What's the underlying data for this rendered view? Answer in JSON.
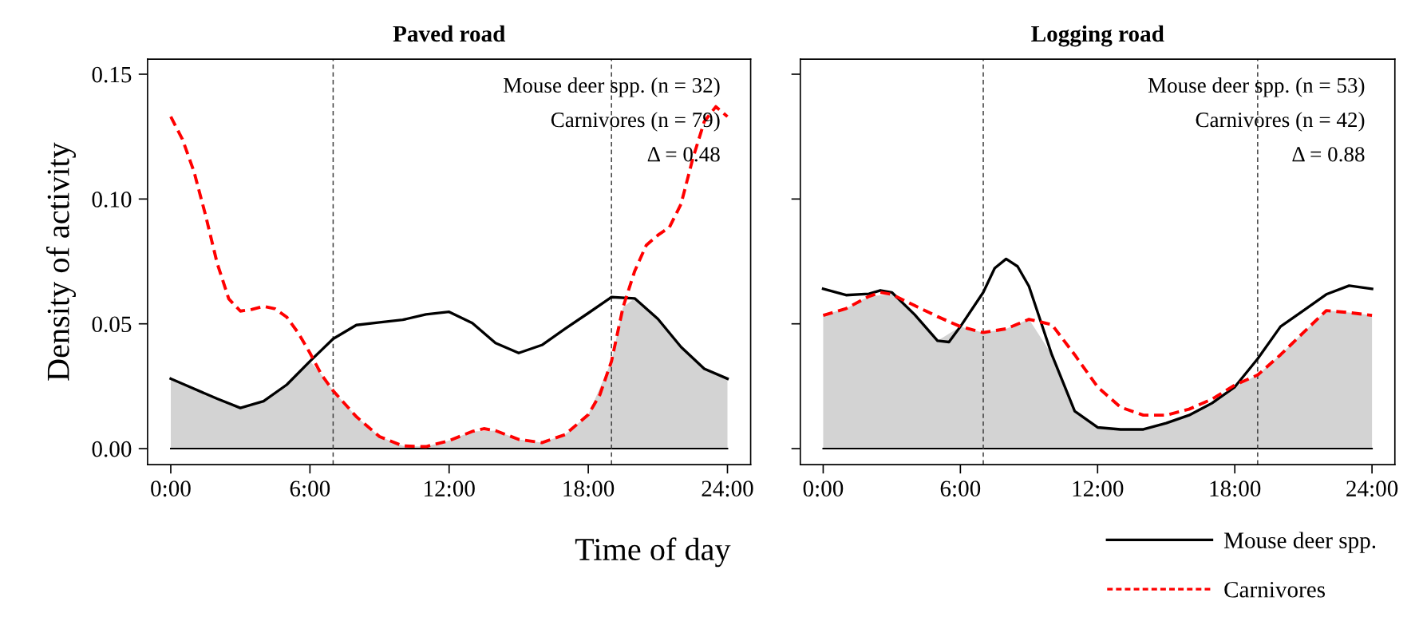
{
  "chart_data": [
    {
      "type": "line",
      "title": "Paved road",
      "ylabel": "Density of activity",
      "xlabel": "Time of day",
      "xlim": [
        -1,
        25
      ],
      "ylim": [
        -0.0064,
        0.156
      ],
      "xticks": [
        {
          "value": 0,
          "label": "0:00"
        },
        {
          "value": 6,
          "label": "6:00"
        },
        {
          "value": 12,
          "label": "12:00"
        },
        {
          "value": 18,
          "label": "18:00"
        },
        {
          "value": 24,
          "label": "24:00"
        }
      ],
      "yticks": [
        {
          "value": 0,
          "label": "0.00"
        },
        {
          "value": 0.05,
          "label": "0.05"
        },
        {
          "value": 0.1,
          "label": "0.10"
        },
        {
          "value": 0.15,
          "label": "0.15"
        }
      ],
      "annotations": [
        "Mouse deer spp. (n = 32)",
        "Carnivores (n = 79)",
        "Δ = 0.48"
      ],
      "legend": "bottom right",
      "grid": false,
      "ref_lines": [
        {
          "axis": "y",
          "value": 0,
          "label": null,
          "color": "#000000",
          "line_style": "solid"
        },
        {
          "axis": "x",
          "value": 7,
          "label": null,
          "color": "#404040",
          "line_style": "dashed"
        },
        {
          "axis": "x",
          "value": 19,
          "label": null,
          "color": "#404040",
          "line_style": "dashed"
        }
      ],
      "series": [
        {
          "type": "area",
          "color": "#d3d3d3",
          "x": [
            0,
            1,
            2,
            3,
            4,
            5,
            6,
            6.5,
            7,
            8,
            9,
            10,
            11,
            12,
            13,
            14,
            15,
            16,
            17,
            18,
            19,
            19.5,
            20,
            21,
            22,
            23,
            24
          ],
          "values": [
            0.028,
            0.024,
            0.02,
            0.0163,
            0.019,
            0.0256,
            0.035,
            0.0296,
            0.0232,
            0.0128,
            0.0048,
            0.0011,
            0.0008,
            0.0032,
            0.0069,
            0.0072,
            0.0037,
            0.0024,
            0.0056,
            0.0136,
            0.035,
            0.0567,
            0.0602,
            0.052,
            0.0407,
            0.032,
            0.028
          ]
        },
        {
          "name": "Mouse deer spp.",
          "line_style": "solid",
          "color": "#000000",
          "x": [
            0,
            1,
            2,
            3,
            4,
            5,
            6,
            7,
            8,
            9,
            10,
            11,
            12,
            13,
            14,
            15,
            16,
            17,
            18,
            19,
            20,
            21,
            22,
            23,
            24
          ],
          "values": [
            0.028,
            0.024,
            0.02,
            0.0163,
            0.019,
            0.0256,
            0.035,
            0.044,
            0.0495,
            0.0506,
            0.0516,
            0.0538,
            0.0548,
            0.0503,
            0.0423,
            0.0383,
            0.0415,
            0.048,
            0.0543,
            0.0607,
            0.0602,
            0.052,
            0.0407,
            0.032,
            0.028
          ]
        },
        {
          "name": "Carnivores",
          "line_style": "dashed",
          "color": "#ff0000",
          "x": [
            0,
            0.5,
            1,
            1.5,
            2,
            2.5,
            3,
            3.5,
            4,
            4.5,
            5,
            5.5,
            6,
            6.5,
            7,
            8,
            9,
            10,
            11,
            12,
            13,
            13.5,
            14,
            15,
            16,
            17,
            18,
            18.5,
            19,
            19.5,
            20,
            20.5,
            21,
            21.5,
            22,
            22.5,
            23,
            23.5,
            24
          ],
          "values": [
            0.133,
            0.124,
            0.111,
            0.0935,
            0.0743,
            0.06,
            0.0551,
            0.0558,
            0.057,
            0.056,
            0.0527,
            0.0463,
            0.0383,
            0.0296,
            0.0232,
            0.0128,
            0.0048,
            0.0011,
            0.0008,
            0.0032,
            0.0069,
            0.008,
            0.0072,
            0.0037,
            0.0024,
            0.0056,
            0.0136,
            0.0216,
            0.035,
            0.0567,
            0.0711,
            0.0815,
            0.0855,
            0.0887,
            0.098,
            0.116,
            0.131,
            0.137,
            0.133
          ]
        }
      ]
    },
    {
      "type": "line",
      "title": "Logging road",
      "xlim": [
        -1,
        25
      ],
      "ylim": [
        -0.0064,
        0.156
      ],
      "tick_labels": "x",
      "xticks": [
        {
          "value": 0,
          "label": "0:00"
        },
        {
          "value": 6,
          "label": "6:00"
        },
        {
          "value": 12,
          "label": "12:00"
        },
        {
          "value": 18,
          "label": "18:00"
        },
        {
          "value": 24,
          "label": "24:00"
        }
      ],
      "yticks": [
        {
          "value": 0,
          "label": null
        },
        {
          "value": 0.05,
          "label": null
        },
        {
          "value": 0.1,
          "label": null
        },
        {
          "value": 0.15,
          "label": null
        }
      ],
      "annotations": [
        "Mouse deer spp. (n = 53)",
        "Carnivores (n = 42)",
        "Δ = 0.88"
      ],
      "grid": false,
      "ref_lines": [
        {
          "axis": "y",
          "value": 0,
          "label": null,
          "color": "#000000",
          "line_style": "solid"
        },
        {
          "axis": "x",
          "value": 7,
          "label": null,
          "color": "#404040",
          "line_style": "dashed"
        },
        {
          "axis": "x",
          "value": 19,
          "label": null,
          "color": "#404040",
          "line_style": "dashed"
        }
      ],
      "series": [
        {
          "type": "area",
          "color": "#d3d3d3",
          "x": [
            0,
            1,
            2,
            3,
            4,
            5,
            6,
            7,
            8,
            9,
            10,
            11,
            12,
            13,
            14,
            15,
            16,
            17,
            18,
            19,
            20,
            21,
            22,
            23,
            24
          ],
          "values": [
            0.0534,
            0.0561,
            0.061,
            0.0618,
            0.0537,
            0.0432,
            0.0489,
            0.0465,
            0.048,
            0.0518,
            0.0376,
            0.015,
            0.0085,
            0.0077,
            0.0077,
            0.0102,
            0.0134,
            0.0182,
            0.0247,
            0.0295,
            0.0376,
            0.0465,
            0.0553,
            0.0545,
            0.0534
          ]
        },
        {
          "line_style": "solid",
          "color": "#000000",
          "x": [
            0,
            1,
            2,
            2.5,
            3,
            4,
            5,
            5.5,
            6,
            7,
            7.5,
            8,
            8.5,
            9,
            10,
            11,
            12,
            13,
            14,
            15,
            16,
            17,
            18,
            19,
            20,
            21,
            22,
            23,
            24
          ],
          "values": [
            0.064,
            0.0615,
            0.062,
            0.0634,
            0.0626,
            0.0537,
            0.0432,
            0.0427,
            0.0489,
            0.0626,
            0.0723,
            0.076,
            0.073,
            0.065,
            0.0376,
            0.015,
            0.0085,
            0.0077,
            0.0077,
            0.0102,
            0.0134,
            0.0182,
            0.0247,
            0.036,
            0.0489,
            0.0553,
            0.0618,
            0.0653,
            0.064
          ]
        },
        {
          "line_style": "dashed",
          "color": "#ff0000",
          "x": [
            0,
            1,
            2,
            2.5,
            3,
            4,
            5,
            6,
            7,
            8,
            9,
            10,
            11,
            12,
            13,
            14,
            15,
            16,
            17,
            18,
            19,
            20,
            21,
            22,
            23,
            24
          ],
          "values": [
            0.0534,
            0.0561,
            0.061,
            0.0626,
            0.0618,
            0.0573,
            0.0529,
            0.0489,
            0.0465,
            0.048,
            0.0518,
            0.0497,
            0.0376,
            0.0247,
            0.0166,
            0.0134,
            0.0134,
            0.0158,
            0.0198,
            0.0255,
            0.0295,
            0.0376,
            0.0465,
            0.0553,
            0.0545,
            0.0534
          ]
        }
      ]
    }
  ]
}
